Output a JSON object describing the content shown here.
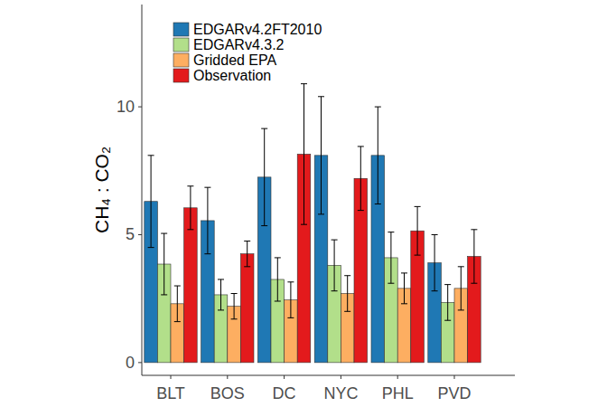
{
  "chart_data": {
    "type": "bar",
    "y_label": "CH₄ : CO₂",
    "categories": [
      "BLT",
      "BOS",
      "DC",
      "NYC",
      "PHL",
      "PVD"
    ],
    "series": [
      {
        "name": "EDGARv4.2FT2010",
        "color": "#1f78b4",
        "values": [
          6.3,
          5.55,
          7.25,
          8.1,
          8.1,
          3.9
        ],
        "errors": [
          1.8,
          1.3,
          1.9,
          2.3,
          1.9,
          1.1
        ]
      },
      {
        "name": "EDGARv4.3.2",
        "color": "#b2df8a",
        "values": [
          3.85,
          2.65,
          3.25,
          3.8,
          4.1,
          2.35
        ],
        "errors": [
          1.2,
          0.6,
          0.85,
          1.0,
          1.0,
          0.7
        ]
      },
      {
        "name": "Gridded EPA",
        "color": "#fdae61",
        "values": [
          2.3,
          2.2,
          2.45,
          2.7,
          2.9,
          2.9
        ],
        "errors": [
          0.7,
          0.5,
          0.7,
          0.7,
          0.6,
          0.85
        ]
      },
      {
        "name": "Observation",
        "color": "#e31a1c",
        "values": [
          6.05,
          4.25,
          8.15,
          7.2,
          5.15,
          4.15
        ],
        "errors": [
          0.85,
          0.5,
          2.75,
          1.25,
          0.95,
          1.05
        ]
      }
    ],
    "ylim": [
      -0.5,
      14
    ],
    "yticks": [
      0,
      5,
      10
    ],
    "grid": false,
    "legend": "top-left"
  }
}
